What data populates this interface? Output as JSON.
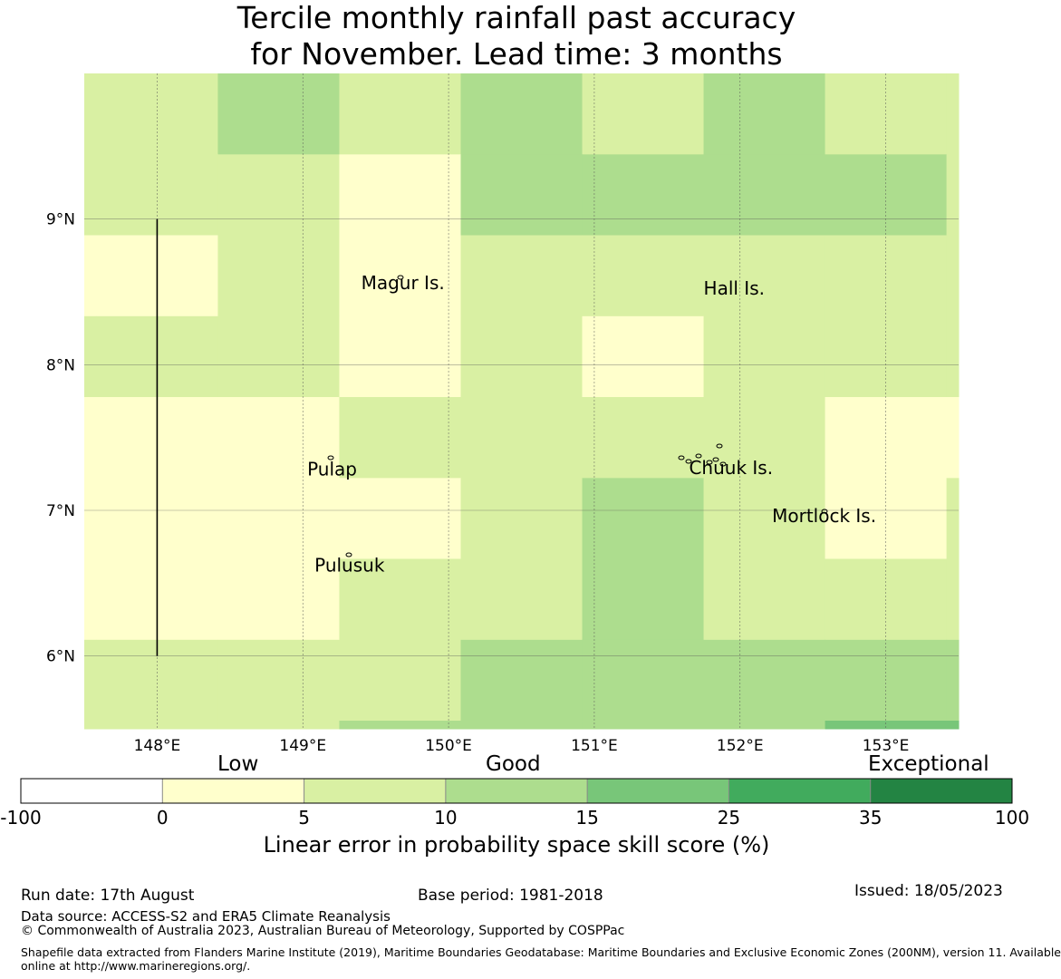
{
  "title": {
    "line1": "Tercile monthly rainfall past accuracy",
    "line2": "for November. Lead time: 3 months"
  },
  "map": {
    "lon_range": [
      147.5,
      153.5
    ],
    "lat_range": [
      5.5,
      10.0
    ],
    "lon_ticks": [
      148,
      149,
      150,
      151,
      152,
      153
    ],
    "lon_tick_labels": [
      "148°E",
      "149°E",
      "150°E",
      "151°E",
      "152°E",
      "153°E"
    ],
    "lat_ticks": [
      6,
      7,
      8,
      9
    ],
    "lat_tick_labels": [
      "6°N",
      "7°N",
      "8°N",
      "9°N"
    ],
    "cell_lon_edges": [
      147.5,
      147.5833,
      148.4167,
      149.25,
      150.0833,
      150.9167,
      151.75,
      152.5833,
      153.4167,
      153.5
    ],
    "cell_lat_edges": [
      10.0,
      9.444,
      8.889,
      8.333,
      7.778,
      7.222,
      6.667,
      6.111,
      5.556,
      5.5
    ],
    "skill_grid": [
      [
        5,
        5,
        10,
        5,
        10,
        5,
        10,
        5,
        5
      ],
      [
        5,
        5,
        5,
        0,
        10,
        10,
        10,
        10,
        5
      ],
      [
        0,
        0,
        5,
        0,
        5,
        5,
        5,
        5,
        5
      ],
      [
        5,
        5,
        5,
        0,
        5,
        0,
        5,
        5,
        5
      ],
      [
        0,
        0,
        0,
        5,
        5,
        5,
        5,
        0,
        0
      ],
      [
        0,
        0,
        0,
        0,
        5,
        10,
        5,
        0,
        5
      ],
      [
        0,
        0,
        0,
        5,
        5,
        10,
        5,
        5,
        5
      ],
      [
        5,
        5,
        5,
        5,
        10,
        10,
        10,
        10,
        10
      ],
      [
        5,
        5,
        5,
        10,
        10,
        10,
        10,
        15,
        15
      ]
    ],
    "places": [
      {
        "name": "Magur Is.",
        "lon": 149.4,
        "lat": 8.52
      },
      {
        "name": "Hall Is.",
        "lon": 151.75,
        "lat": 8.48
      },
      {
        "name": "Pulap",
        "lon": 149.03,
        "lat": 7.24
      },
      {
        "name": "Chuuk Is.",
        "lon": 151.65,
        "lat": 7.25
      },
      {
        "name": "Mortlock Is.",
        "lon": 152.22,
        "lat": 6.92
      },
      {
        "name": "Pulusuk",
        "lon": 149.08,
        "lat": 6.58
      }
    ],
    "boundary_line": {
      "lon": 148.0,
      "lat_from": 6.0,
      "lat_to": 9.0
    }
  },
  "colorbar": {
    "headings": [
      "Low",
      "Good",
      "Exceptional"
    ],
    "tick_labels": [
      "-100",
      "0",
      "5",
      "10",
      "15",
      "25",
      "35",
      "100"
    ],
    "colors": [
      "#ffffff",
      "#ffffcc",
      "#d9f0a3",
      "#addd8e",
      "#78c679",
      "#41ab5d",
      "#238443"
    ],
    "label": "Linear error in probability space skill score (%)"
  },
  "footer": {
    "run_date": "Run date: 17th August",
    "base_period": "Base period: 1981-2018",
    "issued": "Issued: 18/05/2023",
    "data_source": "Data source: ACCESS-S2 and ERA5 Climate Reanalysis",
    "copyright": "© Commonwealth of Australia 2023, Australian Bureau of Meteorology, Supported by COSPPac",
    "shapefile_note_line1": "Shapefile data extracted from Flanders Marine Institute (2019), Maritime Boundaries Geodatabase: Maritime Boundaries and Exclusive Economic Zones (200NM), version 11. Available",
    "shapefile_note_line2": "online at http://www.marineregions.org/."
  }
}
